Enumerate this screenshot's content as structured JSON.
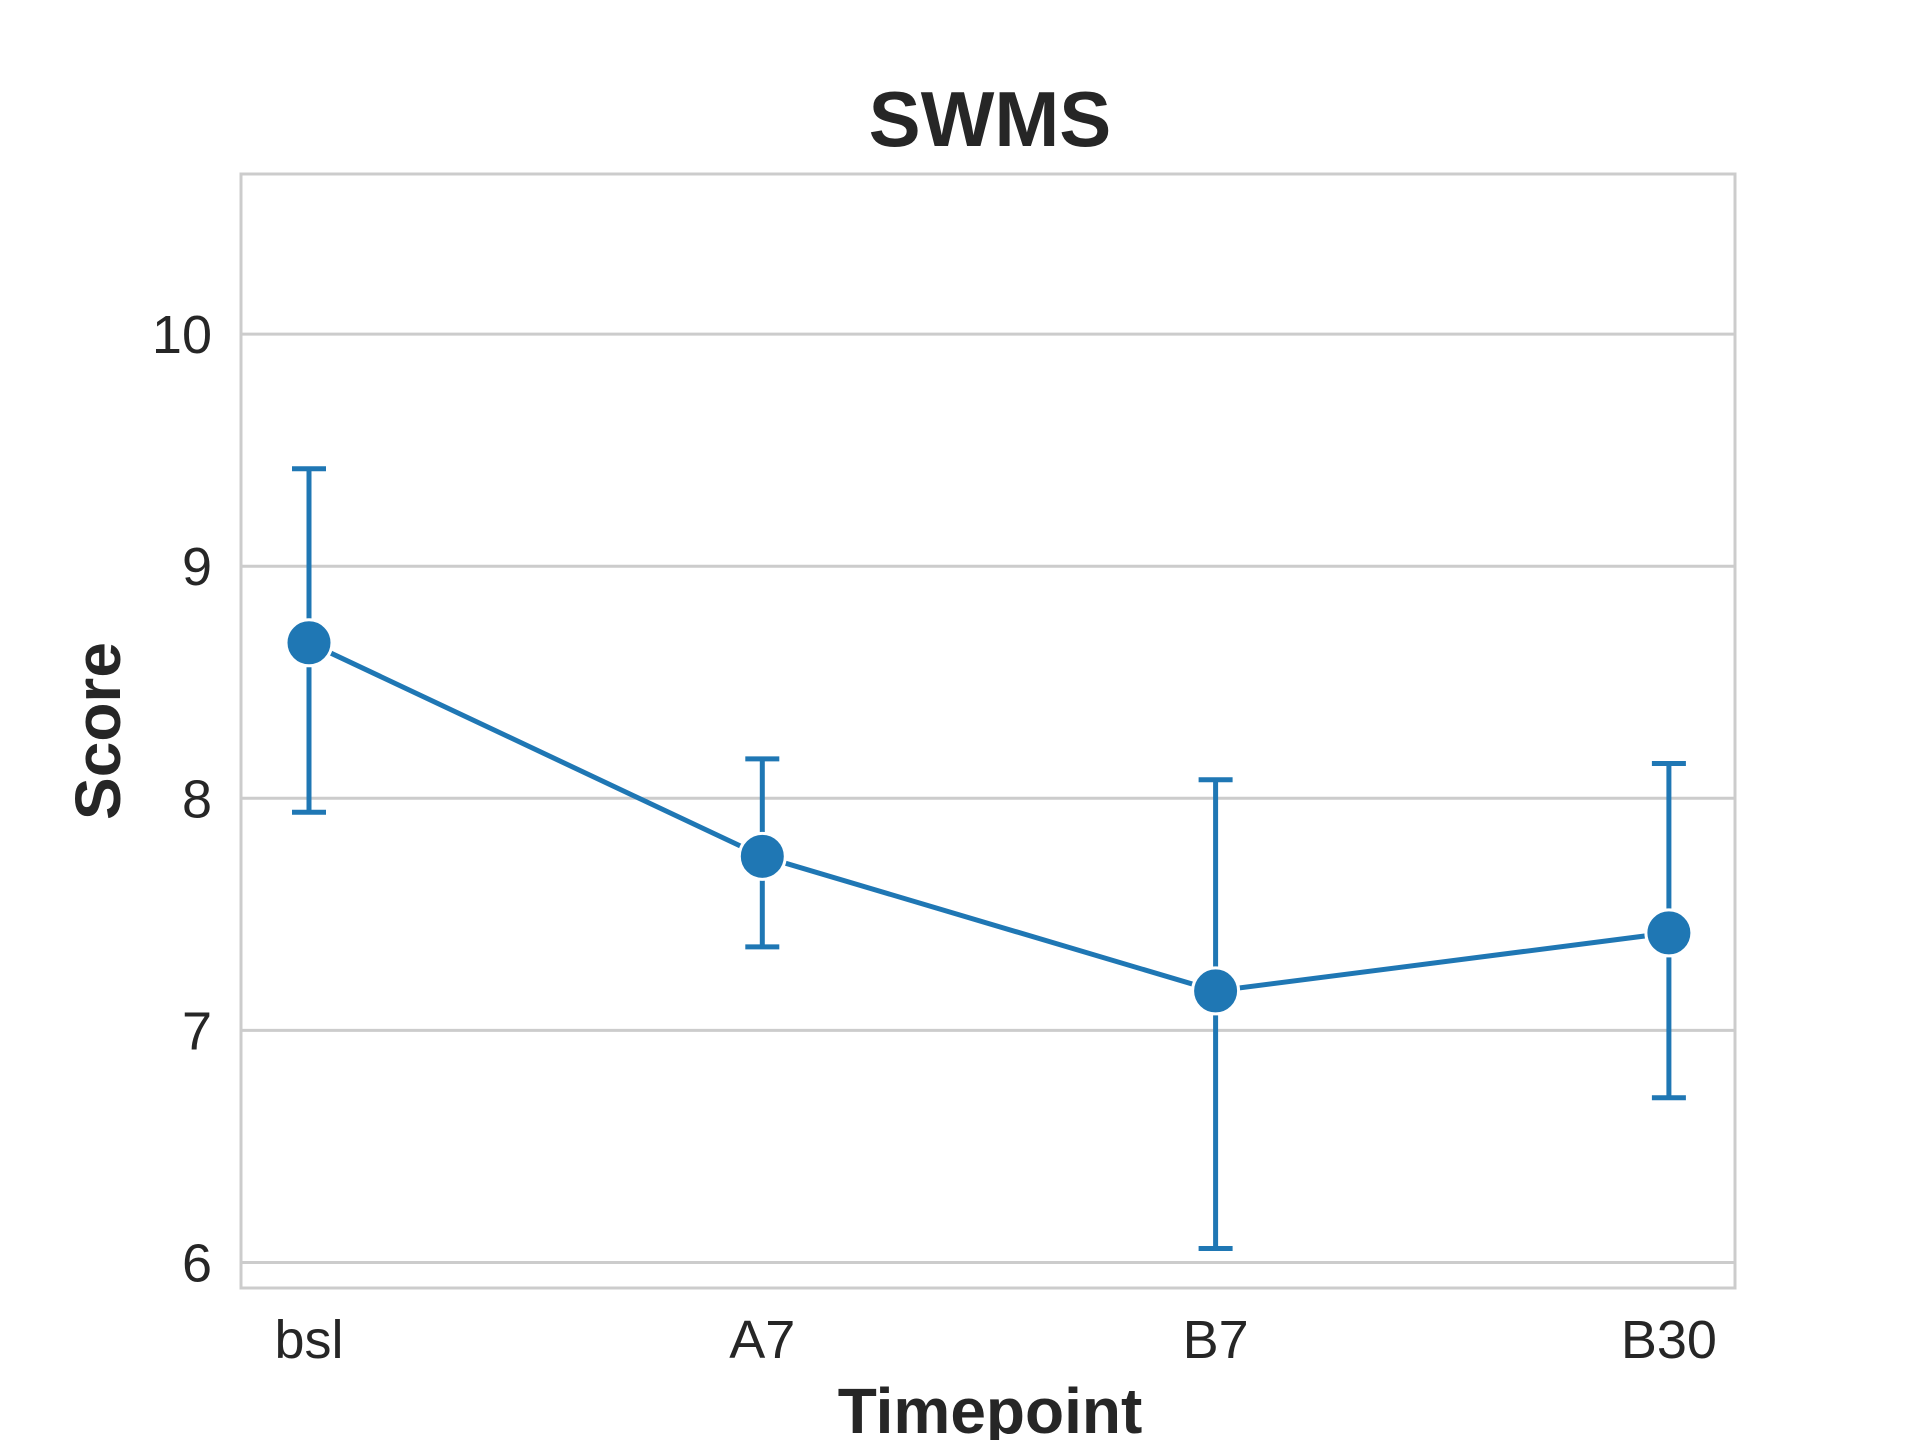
{
  "chart_data": {
    "type": "line",
    "title": "SWMS",
    "xlabel": "Timepoint",
    "ylabel": "Score",
    "categories": [
      "bsl",
      "A7",
      "B7",
      "B30"
    ],
    "series": [
      {
        "values": [
          8.67,
          7.75,
          7.17,
          7.42
        ],
        "error_low": [
          7.94,
          7.36,
          6.06,
          6.71
        ],
        "error_high": [
          9.42,
          8.17,
          8.08,
          8.15
        ]
      }
    ],
    "ylim": [
      5.89,
      10.69
    ],
    "yticks": [
      6,
      7,
      8,
      9,
      10
    ],
    "grid": true,
    "color": "#1f77b4"
  }
}
